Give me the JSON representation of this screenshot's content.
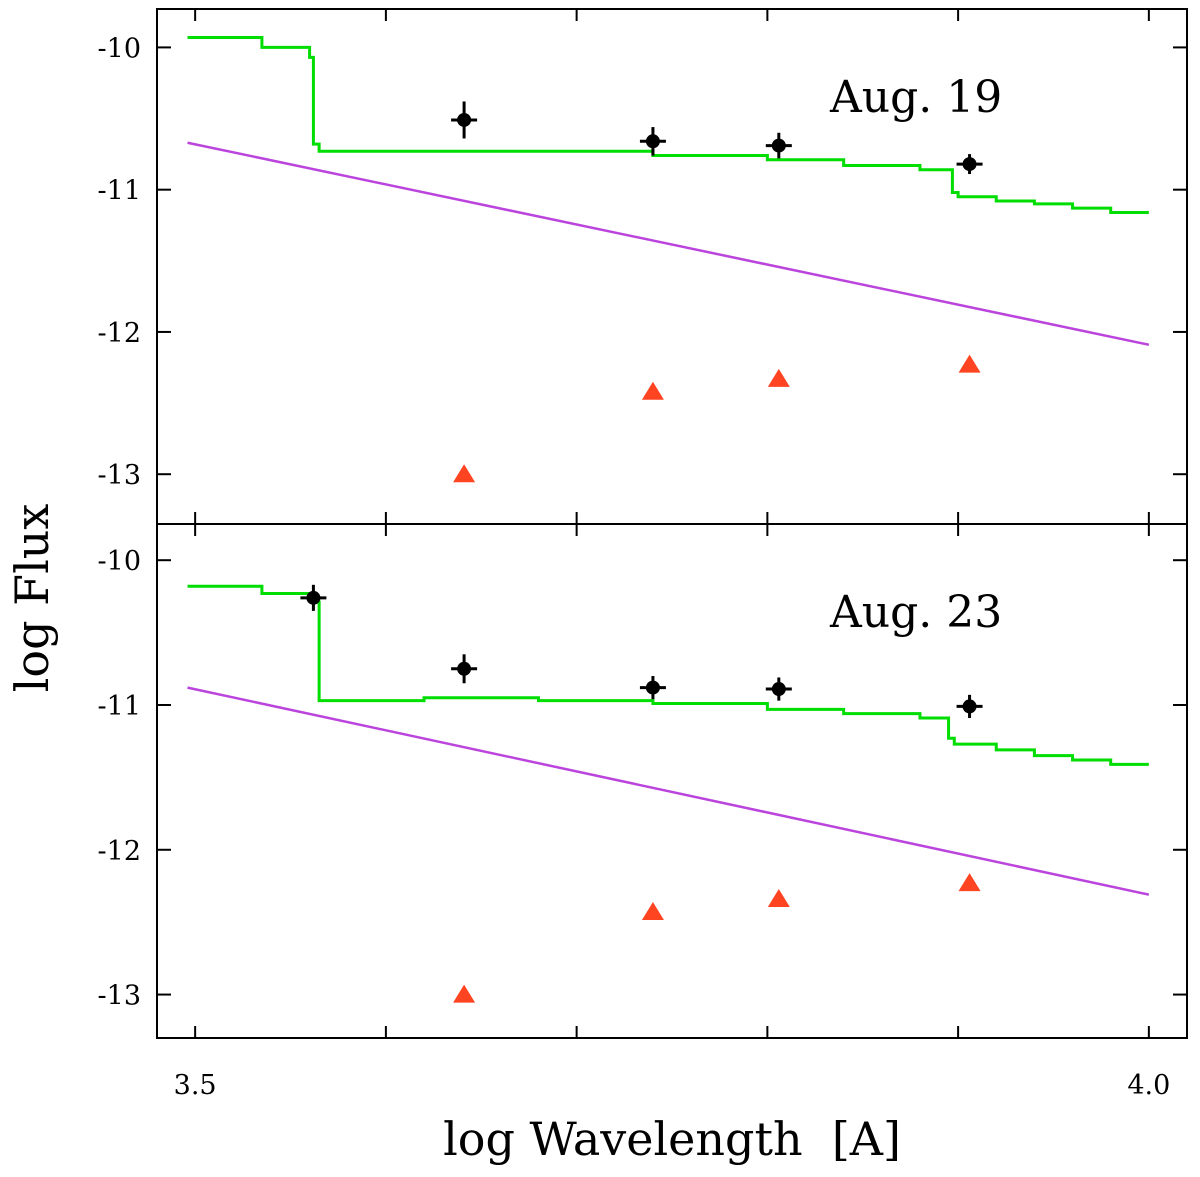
{
  "chart_data": {
    "type": "line",
    "xlabel": "log Wavelength  [A]",
    "ylabel": "log Flux",
    "xlim": [
      3.48,
      4.02
    ],
    "x_ticks": [
      3.5,
      3.6,
      3.7,
      3.8,
      3.9,
      4.0
    ],
    "x_tick_labels": [
      "3.5",
      "",
      "",
      "",
      "",
      "4.0"
    ],
    "y_ticks": [
      -10,
      -11,
      -12,
      -13
    ],
    "y_tick_labels": [
      "-10",
      "-11",
      "-12",
      "-13"
    ],
    "line_colors": {
      "model": "#00dd00",
      "power_law": "#bb44dd",
      "triangles": "#ff4422",
      "observed": "#000000"
    },
    "panels": [
      {
        "label": "Aug. 19",
        "ylim": [
          -13.35,
          -9.73
        ],
        "model_step": {
          "name": "model",
          "x": [
            3.496,
            3.535,
            3.535,
            3.56,
            3.56,
            3.562,
            3.562,
            3.565,
            3.565,
            3.74,
            3.74,
            3.8,
            3.8,
            3.84,
            3.84,
            3.88,
            3.88,
            3.897,
            3.897,
            3.9,
            3.9,
            3.92,
            3.92,
            3.94,
            3.94,
            3.96,
            3.96,
            3.98,
            3.98,
            4.0
          ],
          "y": [
            -9.93,
            -9.93,
            -10.0,
            -10.0,
            -10.07,
            -10.07,
            -10.68,
            -10.68,
            -10.73,
            -10.73,
            -10.76,
            -10.76,
            -10.79,
            -10.79,
            -10.83,
            -10.83,
            -10.86,
            -10.86,
            -11.02,
            -11.02,
            -11.05,
            -11.05,
            -11.08,
            -11.08,
            -11.1,
            -11.1,
            -11.13,
            -11.13,
            -11.16,
            -11.16
          ]
        },
        "power_law": {
          "name": "power law",
          "x": [
            3.496,
            4.0
          ],
          "y": [
            -10.67,
            -12.09
          ]
        },
        "observed": {
          "name": "observed",
          "x": [
            3.641,
            3.74,
            3.806,
            3.906
          ],
          "y": [
            -10.51,
            -10.66,
            -10.69,
            -10.82
          ],
          "yerr": [
            0.13,
            0.1,
            0.09,
            0.07
          ]
        },
        "triangles": {
          "name": "triangles",
          "x": [
            3.641,
            3.74,
            3.806,
            3.906
          ],
          "y": [
            -13.0,
            -12.42,
            -12.33,
            -12.23
          ]
        }
      },
      {
        "label": "Aug. 23",
        "ylim": [
          -13.3,
          -9.75
        ],
        "model_step": {
          "name": "model",
          "x": [
            3.496,
            3.535,
            3.535,
            3.562,
            3.562,
            3.565,
            3.565,
            3.62,
            3.62,
            3.68,
            3.68,
            3.74,
            3.74,
            3.8,
            3.8,
            3.84,
            3.84,
            3.88,
            3.88,
            3.895,
            3.895,
            3.898,
            3.898,
            3.92,
            3.92,
            3.94,
            3.94,
            3.96,
            3.96,
            3.98,
            3.98,
            4.0
          ],
          "y": [
            -10.18,
            -10.18,
            -10.23,
            -10.23,
            -10.29,
            -10.29,
            -10.97,
            -10.97,
            -10.95,
            -10.95,
            -10.97,
            -10.97,
            -10.99,
            -10.99,
            -11.03,
            -11.03,
            -11.06,
            -11.06,
            -11.09,
            -11.09,
            -11.23,
            -11.23,
            -11.27,
            -11.27,
            -11.31,
            -11.31,
            -11.35,
            -11.35,
            -11.38,
            -11.38,
            -11.41,
            -11.41
          ]
        },
        "power_law": {
          "name": "power law",
          "x": [
            3.496,
            4.0
          ],
          "y": [
            -10.88,
            -12.31
          ]
        },
        "observed": {
          "name": "observed",
          "x": [
            3.562,
            3.641,
            3.74,
            3.806,
            3.906
          ],
          "y": [
            -10.26,
            -10.75,
            -10.88,
            -10.89,
            -11.01
          ],
          "yerr": [
            0.09,
            0.1,
            0.08,
            0.08,
            0.08
          ]
        },
        "triangles": {
          "name": "triangles",
          "x": [
            3.641,
            3.74,
            3.806,
            3.906
          ],
          "y": [
            -13.0,
            -12.43,
            -12.34,
            -12.23
          ]
        }
      }
    ]
  }
}
